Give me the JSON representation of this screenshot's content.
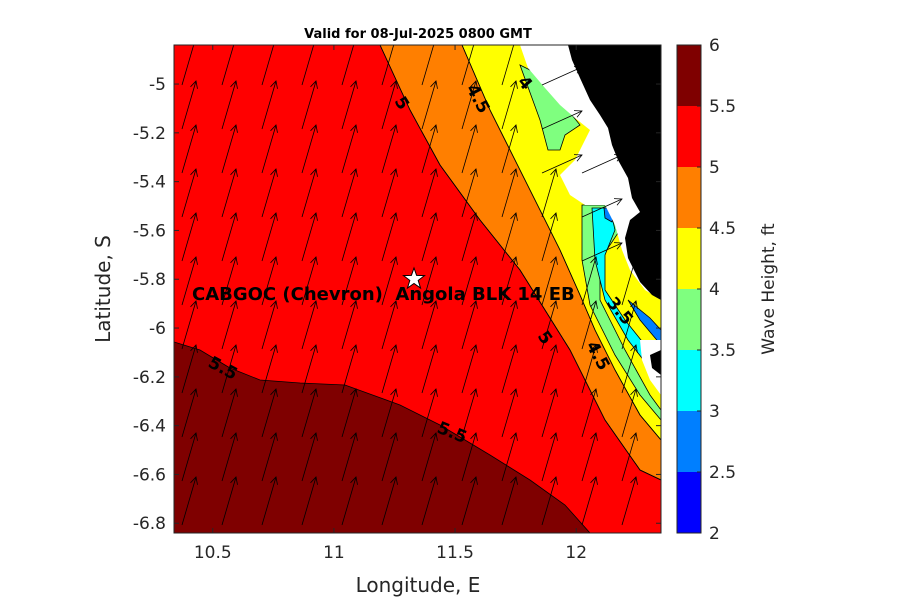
{
  "title": "Valid for 08-Jul-2025 0800 GMT",
  "xlabel": "Longitude, E",
  "ylabel": "Latitude, S",
  "x_ticks": [
    "10.5",
    "11",
    "11.5",
    "12"
  ],
  "y_ticks": [
    "-5",
    "-5.2",
    "-5.4",
    "-5.6",
    "-5.8",
    "-6",
    "-6.2",
    "-6.4",
    "-6.6",
    "-6.8"
  ],
  "colorbar": {
    "label": "Wave Height, ft",
    "ticks": [
      "2",
      "2.5",
      "3",
      "3.5",
      "4",
      "4.5",
      "5",
      "5.5",
      "6"
    ],
    "colors": [
      "#0000ff",
      "#007fff",
      "#00ffff",
      "#7fff7f",
      "#ffff00",
      "#ff7f00",
      "#ff0000",
      "#7f0000"
    ]
  },
  "contour_labels": [
    "5",
    "4.5",
    "4",
    "5",
    "4.5",
    "3.5",
    "5.5",
    "5.5"
  ],
  "site": {
    "label": "CABGOC (Chevron)  Angola BLK 14 EB",
    "marker": "star-icon",
    "lon": 11.32,
    "lat": -5.79
  },
  "map_data": {
    "lon_range": [
      10.34,
      12.35
    ],
    "lat_range": [
      -6.84,
      -4.84
    ],
    "wave_direction": "toward north-northeast",
    "land_color": "#000000"
  }
}
